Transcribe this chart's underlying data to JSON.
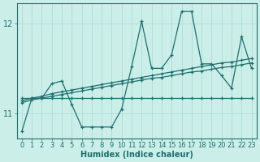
{
  "xlabel": "Humidex (Indice chaleur)",
  "background_color": "#cceee8",
  "grid_color": "#aaddda",
  "line_color": "#1a7070",
  "xlim": [
    -0.5,
    23.5
  ],
  "ylim": [
    10.72,
    12.22
  ],
  "yticks": [
    11,
    12
  ],
  "xticks": [
    0,
    1,
    2,
    3,
    4,
    5,
    6,
    7,
    8,
    9,
    10,
    11,
    12,
    13,
    14,
    15,
    16,
    17,
    18,
    19,
    20,
    21,
    22,
    23
  ],
  "series": [
    [
      10.8,
      11.17,
      11.17,
      11.33,
      11.36,
      11.1,
      10.85,
      10.85,
      10.85,
      10.85,
      11.05,
      11.52,
      12.02,
      11.5,
      11.5,
      11.65,
      12.13,
      12.13,
      11.55,
      11.55,
      11.42,
      11.28,
      11.85,
      11.5
    ],
    [
      11.17,
      11.17,
      11.17,
      11.17,
      11.17,
      11.17,
      11.17,
      11.17,
      11.17,
      11.17,
      11.17,
      11.17,
      11.17,
      11.17,
      11.17,
      11.17,
      11.17,
      11.17,
      11.17,
      11.17,
      11.17,
      11.17,
      11.17,
      11.17
    ],
    [
      11.14,
      11.17,
      11.19,
      11.22,
      11.24,
      11.26,
      11.28,
      11.3,
      11.32,
      11.34,
      11.36,
      11.38,
      11.4,
      11.42,
      11.44,
      11.46,
      11.48,
      11.5,
      11.52,
      11.54,
      11.56,
      11.57,
      11.59,
      11.61
    ],
    [
      11.12,
      11.15,
      11.17,
      11.19,
      11.21,
      11.23,
      11.25,
      11.27,
      11.29,
      11.31,
      11.33,
      11.35,
      11.37,
      11.39,
      11.4,
      11.42,
      11.44,
      11.46,
      11.47,
      11.49,
      11.51,
      11.52,
      11.54,
      11.56
    ]
  ],
  "xlabel_fontsize": 7,
  "tick_fontsize": 6,
  "line_width": 0.9,
  "marker_size": 3.5
}
